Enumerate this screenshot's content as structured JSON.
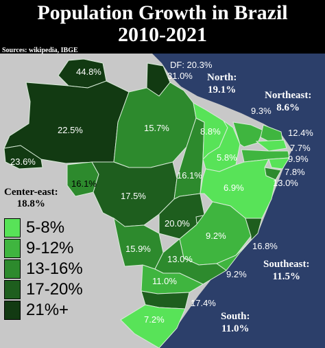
{
  "title": {
    "line1": "Population Growth in Brazil",
    "line2": "2010-2021"
  },
  "source": "Sources: wikipedia, IBGE",
  "colors": {
    "ocean": "#2c3f6a",
    "neighbors": "#c8c8c8",
    "c5_8": "#58e358",
    "c9_12": "#3fb53f",
    "c13_16": "#2d8a2d",
    "c17_20": "#1e5e1e",
    "c21p": "#123a12"
  },
  "regions": {
    "north": {
      "name": "North:",
      "value": "19.1%"
    },
    "northeast": {
      "name": "Northeast:",
      "value": "8.6%"
    },
    "center_east": {
      "name": "Center-east:",
      "value": "18.8%"
    },
    "southeast": {
      "name": "Southeast:",
      "value": "11.5%"
    },
    "south": {
      "name": "South:",
      "value": "11.0%"
    }
  },
  "states": {
    "roraima": "44.8%",
    "amazonas": "22.5%",
    "acre": "23.6%",
    "para": "15.7%",
    "rondonia": "16.1%",
    "tocantins": "16.1%",
    "mato_grosso": "17.5%",
    "goias": "20.0%",
    "df": "DF: 20.3%",
    "amapa": "31.0%",
    "maranhao": "8.8%",
    "piaui": "5.8%",
    "ceara": "9.3%",
    "rn": "12.4%",
    "paraiba": "7.7%",
    "pernambuco": "9.9%",
    "alagoas": "7.8%",
    "sergipe": "13.0%",
    "bahia": "6.9%",
    "minas": "9.2%",
    "es": "16.8%",
    "rj": "9.2%",
    "sp": "13.0%",
    "ms": "15.9%",
    "parana": "11.0%",
    "sc": "17.4%",
    "rs": "7.2%"
  },
  "legend": [
    "5-8%",
    "9-12%",
    "13-16%",
    "17-20%",
    "21%+"
  ]
}
